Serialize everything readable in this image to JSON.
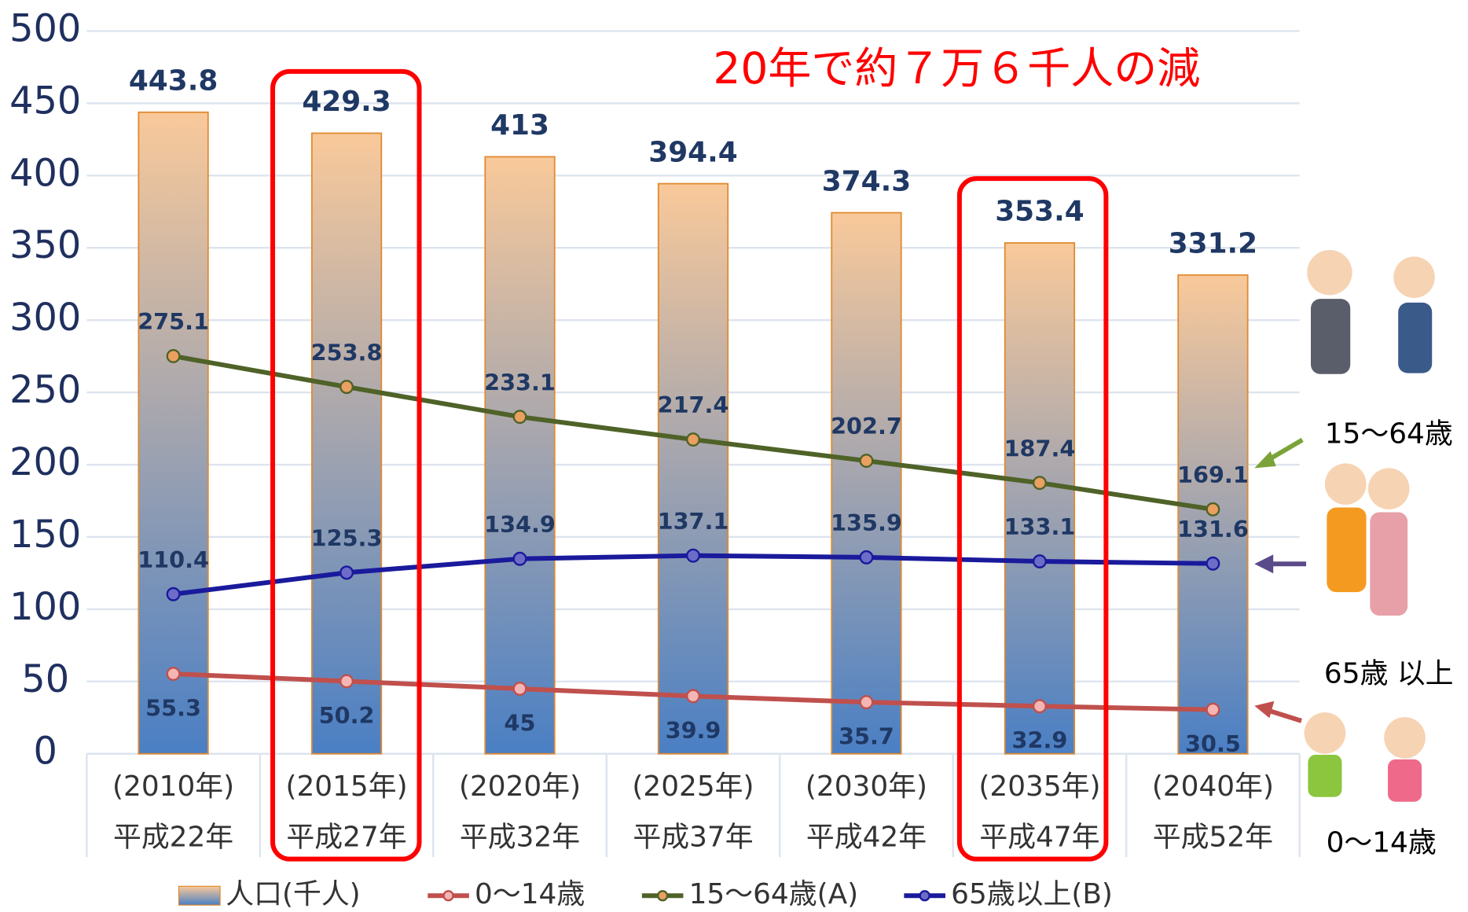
{
  "chart_data": {
    "type": "bar",
    "annotation": "20年で約７万６千人の減",
    "categories": [
      [
        "(2010年)",
        "平成22年"
      ],
      [
        "(2015年)",
        "平成27年"
      ],
      [
        "(2020年)",
        "平成32年"
      ],
      [
        "(2025年)",
        "平成37年"
      ],
      [
        "(2030年)",
        "平成42年"
      ],
      [
        "(2035年)",
        "平成47年"
      ],
      [
        "(2040年)",
        "平成52年"
      ]
    ],
    "series": [
      {
        "name": "人口(千人)",
        "type": "bar",
        "color": "#f9c99a",
        "color_bottom": "#4a7fc4",
        "values": [
          443.8,
          429.3,
          413,
          394.4,
          374.3,
          353.4,
          331.2
        ]
      },
      {
        "name": "0〜14歳",
        "type": "line",
        "color": "#c0504d",
        "marker": "#f4b6b4",
        "values": [
          55.3,
          50.2,
          45,
          39.9,
          35.7,
          32.9,
          30.5
        ]
      },
      {
        "name": "15〜64歳(A)",
        "type": "line",
        "color": "#4f6228",
        "marker": "#e9a060",
        "values": [
          275.1,
          253.8,
          233.1,
          217.4,
          202.7,
          187.4,
          169.1
        ]
      },
      {
        "name": "65歳以上(B)",
        "type": "line",
        "color": "#1a1a9c",
        "marker": "#6d6dc8",
        "values": [
          110.4,
          125.3,
          134.9,
          137.1,
          135.9,
          133.1,
          131.6
        ]
      }
    ],
    "side_labels": [
      "15〜64歳",
      "65歳 以上",
      "0〜14歳"
    ],
    "ylim": [
      0,
      500
    ],
    "yticks": [
      0,
      50,
      100,
      150,
      200,
      250,
      300,
      350,
      400,
      450,
      500
    ],
    "grid": true
  }
}
